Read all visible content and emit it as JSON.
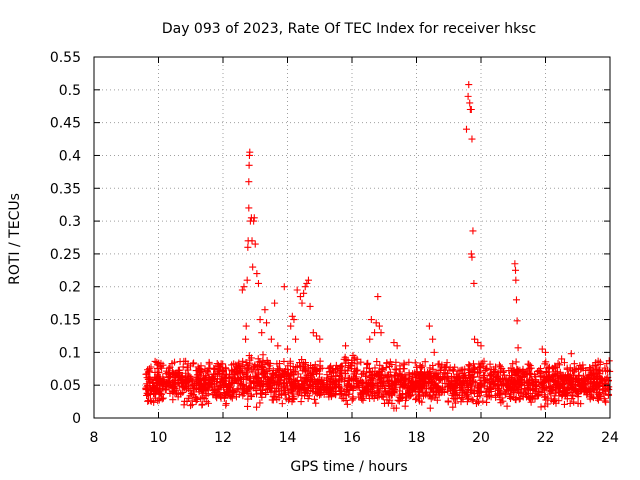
{
  "chart_data": {
    "type": "scatter",
    "title": "Day 093 of 2023, Rate Of TEC Index for receiver hksc",
    "xlabel": "GPS time / hours",
    "ylabel": "ROTI / TECUs",
    "xlim": [
      8,
      24
    ],
    "ylim": [
      0,
      0.55
    ],
    "xticks": [
      "8",
      "10",
      "12",
      "14",
      "16",
      "18",
      "20",
      "22",
      "24"
    ],
    "yticks": [
      "0",
      "0.05",
      "0.1",
      "0.15",
      "0.2",
      "0.25",
      "0.3",
      "0.35",
      "0.4",
      "0.45",
      "0.5",
      "0.55"
    ],
    "grid": true,
    "marker": "plus",
    "color": "#ff0000",
    "series": [
      {
        "name": "ROTI",
        "note": "Dense band of points from 9.6 h to 24 h with values mostly between 0.02 and 0.09 TECUs; notable peaks listed in points",
        "band": {
          "x_start": 9.6,
          "x_end": 24.0,
          "y_low": 0.02,
          "y_high": 0.09
        },
        "points": [
          [
            12.6,
            0.195
          ],
          [
            12.65,
            0.2
          ],
          [
            12.7,
            0.12
          ],
          [
            12.72,
            0.14
          ],
          [
            12.75,
            0.21
          ],
          [
            12.77,
            0.26
          ],
          [
            12.78,
            0.27
          ],
          [
            12.8,
            0.32
          ],
          [
            12.8,
            0.36
          ],
          [
            12.81,
            0.385
          ],
          [
            12.82,
            0.4
          ],
          [
            12.83,
            0.405
          ],
          [
            12.85,
            0.3
          ],
          [
            12.88,
            0.305
          ],
          [
            12.9,
            0.27
          ],
          [
            12.92,
            0.23
          ],
          [
            12.95,
            0.3
          ],
          [
            12.97,
            0.305
          ],
          [
            13.0,
            0.265
          ],
          [
            13.05,
            0.22
          ],
          [
            13.1,
            0.205
          ],
          [
            13.15,
            0.15
          ],
          [
            13.2,
            0.13
          ],
          [
            13.3,
            0.165
          ],
          [
            13.35,
            0.145
          ],
          [
            13.5,
            0.12
          ],
          [
            13.6,
            0.175
          ],
          [
            13.7,
            0.11
          ],
          [
            13.9,
            0.2
          ],
          [
            14.0,
            0.105
          ],
          [
            14.1,
            0.14
          ],
          [
            14.15,
            0.155
          ],
          [
            14.2,
            0.15
          ],
          [
            14.25,
            0.12
          ],
          [
            14.3,
            0.195
          ],
          [
            14.4,
            0.185
          ],
          [
            14.45,
            0.175
          ],
          [
            14.5,
            0.19
          ],
          [
            14.55,
            0.2
          ],
          [
            14.6,
            0.205
          ],
          [
            14.65,
            0.21
          ],
          [
            14.7,
            0.17
          ],
          [
            14.8,
            0.13
          ],
          [
            14.9,
            0.125
          ],
          [
            15.0,
            0.12
          ],
          [
            15.8,
            0.11
          ],
          [
            16.6,
            0.15
          ],
          [
            16.7,
            0.13
          ],
          [
            16.75,
            0.145
          ],
          [
            16.8,
            0.185
          ],
          [
            16.85,
            0.14
          ],
          [
            16.9,
            0.13
          ],
          [
            16.55,
            0.12
          ],
          [
            17.3,
            0.115
          ],
          [
            17.4,
            0.11
          ],
          [
            18.4,
            0.14
          ],
          [
            18.5,
            0.12
          ],
          [
            18.55,
            0.1
          ],
          [
            19.55,
            0.44
          ],
          [
            19.6,
            0.49
          ],
          [
            19.62,
            0.508
          ],
          [
            19.65,
            0.48
          ],
          [
            19.67,
            0.47
          ],
          [
            19.7,
            0.47
          ],
          [
            19.72,
            0.425
          ],
          [
            19.75,
            0.285
          ],
          [
            19.7,
            0.25
          ],
          [
            19.72,
            0.245
          ],
          [
            19.78,
            0.205
          ],
          [
            19.8,
            0.12
          ],
          [
            19.9,
            0.115
          ],
          [
            20.0,
            0.11
          ],
          [
            21.05,
            0.235
          ],
          [
            21.07,
            0.225
          ],
          [
            21.08,
            0.21
          ],
          [
            21.1,
            0.18
          ],
          [
            21.12,
            0.148
          ],
          [
            21.15,
            0.107
          ],
          [
            21.9,
            0.105
          ],
          [
            22.0,
            0.1
          ],
          [
            22.5,
            0.09
          ],
          [
            22.8,
            0.098
          ],
          [
            23.7,
            0.085
          ],
          [
            23.9,
            0.083
          ]
        ]
      }
    ]
  }
}
